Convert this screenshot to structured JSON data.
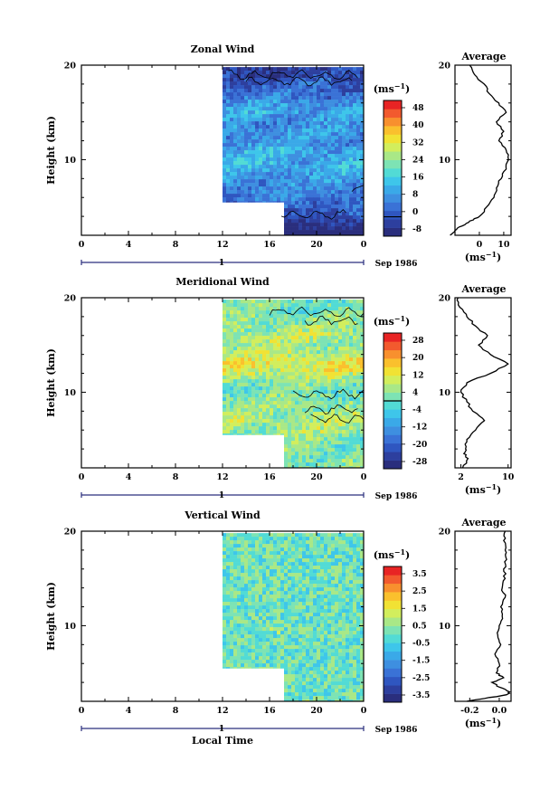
{
  "colormap": [
    "#2a2e7d",
    "#2d3f9e",
    "#2f56c0",
    "#3a72d6",
    "#3e8fe0",
    "#3aa9e8",
    "#3ec6ea",
    "#52dbd5",
    "#7de3b4",
    "#a9e887",
    "#d2ee5d",
    "#f1e234",
    "#fac02d",
    "#f8902e",
    "#f25a2e",
    "#e82424"
  ],
  "axes_common": {
    "xlabel": "Local Time",
    "x_tick_labels": [
      "0",
      "4",
      "8",
      "12",
      "16",
      "20",
      "0"
    ],
    "date_marker_label": "1",
    "date_label": "Sep 1986",
    "ylabel": "Height (km)",
    "y_tick_labels": [
      "10",
      "20"
    ],
    "xlim": [
      0,
      24
    ],
    "ylim": [
      2,
      20
    ],
    "profile_title": "Average"
  },
  "chart_data": [
    {
      "type": "heatmap",
      "id": "zonal",
      "title": "Zonal Wind",
      "units_label": "(ms⁻¹)",
      "colorbar_labels": [
        "48",
        "40",
        "32",
        "24",
        "16",
        "8",
        "0",
        "-8"
      ],
      "colorbar_range": [
        -8,
        48
      ],
      "zero_contour": true,
      "data_extent": {
        "x_start": 12,
        "x_step_at": 17,
        "y_bottom_early": 5.5,
        "y_bottom_late": 2,
        "y_top": 19.8
      },
      "mean_profile": [
        {
          "h": 2,
          "v": -12
        },
        {
          "h": 2.5,
          "v": -10
        },
        {
          "h": 3,
          "v": -7
        },
        {
          "h": 3.5,
          "v": -4
        },
        {
          "h": 4,
          "v": 0
        },
        {
          "h": 5,
          "v": 3
        },
        {
          "h": 6,
          "v": 6
        },
        {
          "h": 7,
          "v": 7
        },
        {
          "h": 8,
          "v": 9
        },
        {
          "h": 9,
          "v": 11
        },
        {
          "h": 10,
          "v": 12
        },
        {
          "h": 11,
          "v": 11
        },
        {
          "h": 12,
          "v": 8
        },
        {
          "h": 13,
          "v": 10
        },
        {
          "h": 14,
          "v": 7
        },
        {
          "h": 15,
          "v": 11
        },
        {
          "h": 16,
          "v": 8
        },
        {
          "h": 17,
          "v": 4
        },
        {
          "h": 18,
          "v": 2
        },
        {
          "h": 19,
          "v": -2
        },
        {
          "h": 20,
          "v": -4
        }
      ],
      "profile_xlim": [
        -10,
        13
      ],
      "profile_x_ticks": [
        0,
        10
      ],
      "profile_x_tick_labels": [
        "0",
        "10"
      ],
      "profile_xlabel": "(ms⁻¹)"
    },
    {
      "type": "heatmap",
      "id": "meridional",
      "title": "Meridional Wind",
      "units_label": "(ms⁻¹)",
      "colorbar_labels": [
        "28",
        "20",
        "12",
        "4",
        "-4",
        "-12",
        "-20",
        "-28"
      ],
      "colorbar_range": [
        -28,
        28
      ],
      "zero_contour": true,
      "data_extent": {
        "x_start": 12,
        "x_step_at": 17,
        "y_bottom_early": 5.5,
        "y_bottom_late": 2,
        "y_top": 19.8
      },
      "mean_profile": [
        {
          "h": 2,
          "v": 2.3
        },
        {
          "h": 3,
          "v": 3.2
        },
        {
          "h": 3.5,
          "v": 2.5
        },
        {
          "h": 4,
          "v": 2.8
        },
        {
          "h": 5,
          "v": 3.0
        },
        {
          "h": 6,
          "v": 4.5
        },
        {
          "h": 7,
          "v": 6.0
        },
        {
          "h": 8,
          "v": 4.0
        },
        {
          "h": 9,
          "v": 3.0
        },
        {
          "h": 10,
          "v": 2.0
        },
        {
          "h": 11,
          "v": 3.0
        },
        {
          "h": 12,
          "v": 7.0
        },
        {
          "h": 13,
          "v": 10.0
        },
        {
          "h": 14,
          "v": 7.0
        },
        {
          "h": 15,
          "v": 5.0
        },
        {
          "h": 16,
          "v": 6.5
        },
        {
          "h": 17,
          "v": 4.5
        },
        {
          "h": 18,
          "v": 3.0
        },
        {
          "h": 19,
          "v": 1.8
        },
        {
          "h": 20,
          "v": 1.5
        }
      ],
      "profile_xlim": [
        1,
        10.5
      ],
      "profile_x_ticks": [
        2,
        10
      ],
      "profile_x_tick_labels": [
        "2",
        "10"
      ],
      "profile_xlabel": "(ms⁻¹)"
    },
    {
      "type": "heatmap",
      "id": "vertical",
      "title": "Vertical Wind",
      "units_label": "(ms⁻¹)",
      "colorbar_labels": [
        "3.5",
        "2.5",
        "1.5",
        "0.5",
        "-0.5",
        "-1.5",
        "-2.5",
        "-3.5"
      ],
      "colorbar_range": [
        -3.5,
        3.5
      ],
      "zero_contour": false,
      "data_extent": {
        "x_start": 12,
        "x_step_at": 17,
        "y_bottom_early": 5.5,
        "y_bottom_late": 2,
        "y_top": 19.8
      },
      "mean_profile": [
        {
          "h": 2,
          "v": -0.22
        },
        {
          "h": 2.3,
          "v": -0.1
        },
        {
          "h": 2.7,
          "v": 0.05
        },
        {
          "h": 3,
          "v": 0.07
        },
        {
          "h": 3.5,
          "v": 0.0
        },
        {
          "h": 4,
          "v": -0.05
        },
        {
          "h": 4.5,
          "v": 0.03
        },
        {
          "h": 5,
          "v": -0.02
        },
        {
          "h": 6,
          "v": 0.0
        },
        {
          "h": 7,
          "v": -0.03
        },
        {
          "h": 8,
          "v": 0.01
        },
        {
          "h": 9,
          "v": -0.01
        },
        {
          "h": 10,
          "v": 0.0
        },
        {
          "h": 11,
          "v": 0.02
        },
        {
          "h": 12,
          "v": 0.01
        },
        {
          "h": 13,
          "v": 0.04
        },
        {
          "h": 14,
          "v": 0.02
        },
        {
          "h": 15,
          "v": 0.04
        },
        {
          "h": 16,
          "v": 0.03
        },
        {
          "h": 17,
          "v": 0.05
        },
        {
          "h": 18,
          "v": 0.04
        },
        {
          "h": 19,
          "v": 0.03
        },
        {
          "h": 20,
          "v": 0.04
        }
      ],
      "profile_xlim": [
        -0.3,
        0.08
      ],
      "profile_x_ticks": [
        -0.2,
        0.0
      ],
      "profile_x_tick_labels": [
        "-0.2",
        "0.0"
      ],
      "profile_xlabel": "(ms⁻¹)"
    }
  ]
}
